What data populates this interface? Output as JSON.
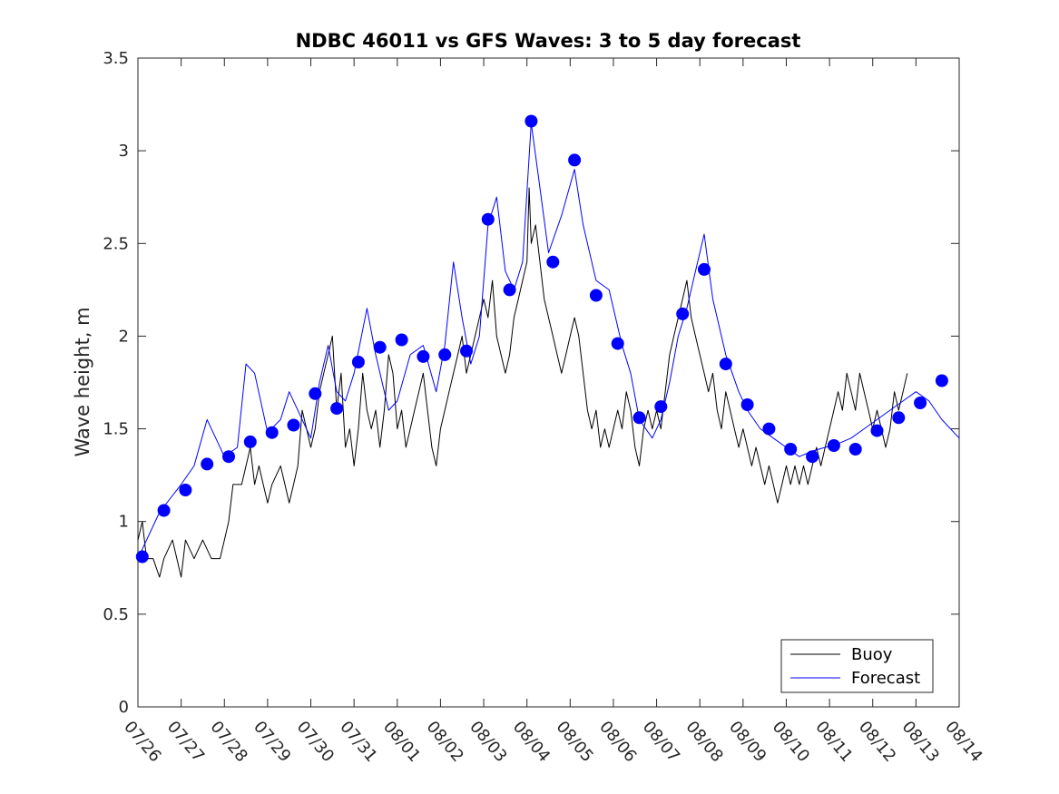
{
  "chart_data": {
    "type": "line",
    "title": "NDBC 46011 vs GFS Waves: 3 to 5 day forecast",
    "xlabel": "",
    "ylabel": "Wave height, m",
    "x_tick_labels": [
      "07/26",
      "07/27",
      "07/28",
      "07/29",
      "07/30",
      "07/31",
      "08/01",
      "08/02",
      "08/03",
      "08/04",
      "08/05",
      "08/06",
      "08/07",
      "08/08",
      "08/09",
      "08/10",
      "08/11",
      "08/12",
      "08/13",
      "08/14"
    ],
    "x_range_days": [
      0,
      19
    ],
    "ylim": [
      0,
      3.5
    ],
    "y_ticks": [
      "0",
      "0.5",
      "1",
      "1.5",
      "2",
      "2.5",
      "3",
      "3.5"
    ],
    "grid": false,
    "legend_position": "bottom-right",
    "legend": [
      {
        "name": "Buoy",
        "color": "#000000"
      },
      {
        "name": "Forecast",
        "color": "#0000ff"
      }
    ],
    "series": [
      {
        "name": "Buoy",
        "color": "#000000",
        "points": [
          [
            0.0,
            0.9
          ],
          [
            0.1,
            1.0
          ],
          [
            0.2,
            0.8
          ],
          [
            0.35,
            0.8
          ],
          [
            0.5,
            0.7
          ],
          [
            0.6,
            0.8
          ],
          [
            0.8,
            0.9
          ],
          [
            0.9,
            0.8
          ],
          [
            1.0,
            0.7
          ],
          [
            1.1,
            0.9
          ],
          [
            1.3,
            0.8
          ],
          [
            1.5,
            0.9
          ],
          [
            1.7,
            0.8
          ],
          [
            1.9,
            0.8
          ],
          [
            2.0,
            0.9
          ],
          [
            2.1,
            1.0
          ],
          [
            2.2,
            1.2
          ],
          [
            2.4,
            1.2
          ],
          [
            2.5,
            1.3
          ],
          [
            2.6,
            1.4
          ],
          [
            2.7,
            1.2
          ],
          [
            2.8,
            1.3
          ],
          [
            2.9,
            1.2
          ],
          [
            3.0,
            1.1
          ],
          [
            3.1,
            1.2
          ],
          [
            3.3,
            1.3
          ],
          [
            3.5,
            1.1
          ],
          [
            3.6,
            1.2
          ],
          [
            3.7,
            1.3
          ],
          [
            3.8,
            1.6
          ],
          [
            3.9,
            1.5
          ],
          [
            4.0,
            1.4
          ],
          [
            4.1,
            1.5
          ],
          [
            4.2,
            1.7
          ],
          [
            4.3,
            1.8
          ],
          [
            4.4,
            1.9
          ],
          [
            4.5,
            2.0
          ],
          [
            4.6,
            1.6
          ],
          [
            4.7,
            1.8
          ],
          [
            4.8,
            1.4
          ],
          [
            4.9,
            1.5
          ],
          [
            5.0,
            1.3
          ],
          [
            5.1,
            1.5
          ],
          [
            5.2,
            1.8
          ],
          [
            5.3,
            1.6
          ],
          [
            5.4,
            1.5
          ],
          [
            5.5,
            1.6
          ],
          [
            5.6,
            1.4
          ],
          [
            5.7,
            1.6
          ],
          [
            5.8,
            1.9
          ],
          [
            5.9,
            1.8
          ],
          [
            6.0,
            1.5
          ],
          [
            6.1,
            1.6
          ],
          [
            6.2,
            1.4
          ],
          [
            6.3,
            1.5
          ],
          [
            6.4,
            1.6
          ],
          [
            6.5,
            1.7
          ],
          [
            6.6,
            1.8
          ],
          [
            6.7,
            1.6
          ],
          [
            6.8,
            1.4
          ],
          [
            6.9,
            1.3
          ],
          [
            7.0,
            1.5
          ],
          [
            7.1,
            1.6
          ],
          [
            7.2,
            1.7
          ],
          [
            7.3,
            1.8
          ],
          [
            7.4,
            1.9
          ],
          [
            7.5,
            2.0
          ],
          [
            7.6,
            1.8
          ],
          [
            7.7,
            1.9
          ],
          [
            7.8,
            2.0
          ],
          [
            7.9,
            2.1
          ],
          [
            8.0,
            2.2
          ],
          [
            8.1,
            2.1
          ],
          [
            8.2,
            2.3
          ],
          [
            8.3,
            2.0
          ],
          [
            8.4,
            1.9
          ],
          [
            8.5,
            1.8
          ],
          [
            8.6,
            1.9
          ],
          [
            8.7,
            2.1
          ],
          [
            8.8,
            2.2
          ],
          [
            8.9,
            2.3
          ],
          [
            9.0,
            2.4
          ],
          [
            9.05,
            2.8
          ],
          [
            9.1,
            2.5
          ],
          [
            9.2,
            2.6
          ],
          [
            9.3,
            2.4
          ],
          [
            9.4,
            2.2
          ],
          [
            9.5,
            2.1
          ],
          [
            9.6,
            2.0
          ],
          [
            9.7,
            1.9
          ],
          [
            9.8,
            1.8
          ],
          [
            9.9,
            1.9
          ],
          [
            10.0,
            2.0
          ],
          [
            10.1,
            2.1
          ],
          [
            10.2,
            2.0
          ],
          [
            10.3,
            1.8
          ],
          [
            10.4,
            1.6
          ],
          [
            10.5,
            1.5
          ],
          [
            10.6,
            1.6
          ],
          [
            10.7,
            1.4
          ],
          [
            10.8,
            1.5
          ],
          [
            10.9,
            1.4
          ],
          [
            11.0,
            1.5
          ],
          [
            11.1,
            1.6
          ],
          [
            11.2,
            1.5
          ],
          [
            11.3,
            1.7
          ],
          [
            11.4,
            1.6
          ],
          [
            11.5,
            1.4
          ],
          [
            11.6,
            1.3
          ],
          [
            11.7,
            1.5
          ],
          [
            11.8,
            1.6
          ],
          [
            11.9,
            1.5
          ],
          [
            12.0,
            1.6
          ],
          [
            12.1,
            1.5
          ],
          [
            12.2,
            1.7
          ],
          [
            12.3,
            1.9
          ],
          [
            12.4,
            2.0
          ],
          [
            12.5,
            2.1
          ],
          [
            12.6,
            2.2
          ],
          [
            12.7,
            2.3
          ],
          [
            12.8,
            2.1
          ],
          [
            12.9,
            2.0
          ],
          [
            13.0,
            1.9
          ],
          [
            13.1,
            1.8
          ],
          [
            13.2,
            1.7
          ],
          [
            13.3,
            1.8
          ],
          [
            13.4,
            1.6
          ],
          [
            13.5,
            1.5
          ],
          [
            13.6,
            1.7
          ],
          [
            13.7,
            1.6
          ],
          [
            13.8,
            1.5
          ],
          [
            13.9,
            1.4
          ],
          [
            14.0,
            1.5
          ],
          [
            14.1,
            1.4
          ],
          [
            14.2,
            1.3
          ],
          [
            14.3,
            1.4
          ],
          [
            14.4,
            1.3
          ],
          [
            14.5,
            1.2
          ],
          [
            14.6,
            1.3
          ],
          [
            14.7,
            1.2
          ],
          [
            14.8,
            1.1
          ],
          [
            14.9,
            1.2
          ],
          [
            15.0,
            1.3
          ],
          [
            15.1,
            1.2
          ],
          [
            15.2,
            1.3
          ],
          [
            15.3,
            1.2
          ],
          [
            15.4,
            1.3
          ],
          [
            15.5,
            1.2
          ],
          [
            15.6,
            1.3
          ],
          [
            15.7,
            1.4
          ],
          [
            15.8,
            1.3
          ],
          [
            15.9,
            1.4
          ],
          [
            16.0,
            1.5
          ],
          [
            16.1,
            1.6
          ],
          [
            16.2,
            1.7
          ],
          [
            16.3,
            1.6
          ],
          [
            16.4,
            1.8
          ],
          [
            16.5,
            1.7
          ],
          [
            16.6,
            1.6
          ],
          [
            16.7,
            1.8
          ],
          [
            16.8,
            1.7
          ],
          [
            16.9,
            1.6
          ],
          [
            17.0,
            1.5
          ],
          [
            17.1,
            1.6
          ],
          [
            17.2,
            1.5
          ],
          [
            17.3,
            1.4
          ],
          [
            17.4,
            1.5
          ],
          [
            17.5,
            1.7
          ],
          [
            17.6,
            1.6
          ],
          [
            17.7,
            1.7
          ],
          [
            17.8,
            1.8
          ]
        ]
      },
      {
        "name": "Forecast",
        "color": "#0000ff",
        "points": [
          [
            0.0,
            0.8
          ],
          [
            0.5,
            1.05
          ],
          [
            1.0,
            1.2
          ],
          [
            1.3,
            1.3
          ],
          [
            1.6,
            1.55
          ],
          [
            2.0,
            1.35
          ],
          [
            2.3,
            1.4
          ],
          [
            2.5,
            1.85
          ],
          [
            2.7,
            1.8
          ],
          [
            3.0,
            1.48
          ],
          [
            3.3,
            1.55
          ],
          [
            3.5,
            1.7
          ],
          [
            3.8,
            1.55
          ],
          [
            4.0,
            1.45
          ],
          [
            4.2,
            1.75
          ],
          [
            4.4,
            1.95
          ],
          [
            4.6,
            1.7
          ],
          [
            4.8,
            1.65
          ],
          [
            5.0,
            1.8
          ],
          [
            5.3,
            2.15
          ],
          [
            5.5,
            1.9
          ],
          [
            5.8,
            1.6
          ],
          [
            6.0,
            1.65
          ],
          [
            6.3,
            1.9
          ],
          [
            6.6,
            1.95
          ],
          [
            6.9,
            1.7
          ],
          [
            7.1,
            1.95
          ],
          [
            7.3,
            2.4
          ],
          [
            7.5,
            2.1
          ],
          [
            7.7,
            1.85
          ],
          [
            7.9,
            2.0
          ],
          [
            8.1,
            2.6
          ],
          [
            8.3,
            2.75
          ],
          [
            8.5,
            2.35
          ],
          [
            8.7,
            2.25
          ],
          [
            8.9,
            2.4
          ],
          [
            9.1,
            3.15
          ],
          [
            9.3,
            2.8
          ],
          [
            9.5,
            2.45
          ],
          [
            9.8,
            2.65
          ],
          [
            10.1,
            2.9
          ],
          [
            10.3,
            2.6
          ],
          [
            10.6,
            2.3
          ],
          [
            10.9,
            2.25
          ],
          [
            11.2,
            1.95
          ],
          [
            11.4,
            1.8
          ],
          [
            11.6,
            1.55
          ],
          [
            11.9,
            1.45
          ],
          [
            12.1,
            1.55
          ],
          [
            12.3,
            1.75
          ],
          [
            12.5,
            2.0
          ],
          [
            12.7,
            2.15
          ],
          [
            12.9,
            2.35
          ],
          [
            13.1,
            2.55
          ],
          [
            13.3,
            2.2
          ],
          [
            13.6,
            1.9
          ],
          [
            13.9,
            1.7
          ],
          [
            14.1,
            1.6
          ],
          [
            14.4,
            1.5
          ],
          [
            14.7,
            1.45
          ],
          [
            15.0,
            1.4
          ],
          [
            15.3,
            1.35
          ],
          [
            15.6,
            1.38
          ],
          [
            15.9,
            1.4
          ],
          [
            16.2,
            1.42
          ],
          [
            16.5,
            1.45
          ],
          [
            16.8,
            1.5
          ],
          [
            17.1,
            1.55
          ],
          [
            17.4,
            1.6
          ],
          [
            17.7,
            1.65
          ],
          [
            18.0,
            1.7
          ],
          [
            18.3,
            1.65
          ],
          [
            18.6,
            1.55
          ],
          [
            19.0,
            1.45
          ]
        ]
      }
    ],
    "forecast_markers": [
      [
        0.1,
        0.81
      ],
      [
        0.6,
        1.06
      ],
      [
        1.1,
        1.17
      ],
      [
        1.6,
        1.31
      ],
      [
        2.1,
        1.35
      ],
      [
        2.6,
        1.43
      ],
      [
        3.1,
        1.48
      ],
      [
        3.6,
        1.52
      ],
      [
        4.1,
        1.69
      ],
      [
        4.6,
        1.61
      ],
      [
        5.1,
        1.86
      ],
      [
        5.6,
        1.94
      ],
      [
        6.1,
        1.98
      ],
      [
        6.6,
        1.89
      ],
      [
        7.1,
        1.9
      ],
      [
        7.6,
        1.92
      ],
      [
        8.1,
        2.63
      ],
      [
        8.6,
        2.25
      ],
      [
        9.1,
        3.16
      ],
      [
        9.6,
        2.4
      ],
      [
        10.1,
        2.95
      ],
      [
        10.6,
        2.22
      ],
      [
        11.1,
        1.96
      ],
      [
        11.6,
        1.56
      ],
      [
        12.1,
        1.62
      ],
      [
        12.6,
        2.12
      ],
      [
        13.1,
        2.36
      ],
      [
        13.6,
        1.85
      ],
      [
        14.1,
        1.63
      ],
      [
        14.6,
        1.5
      ],
      [
        15.1,
        1.39
      ],
      [
        15.6,
        1.35
      ],
      [
        16.1,
        1.41
      ],
      [
        16.6,
        1.39
      ],
      [
        17.1,
        1.49
      ],
      [
        17.6,
        1.56
      ],
      [
        18.1,
        1.64
      ],
      [
        18.6,
        1.76
      ]
    ]
  }
}
